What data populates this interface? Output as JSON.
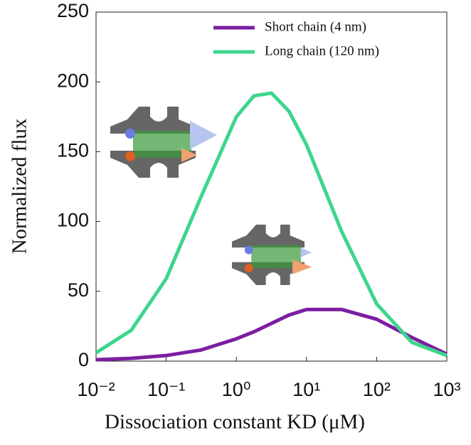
{
  "chart_data": {
    "type": "line",
    "x_label": "Dissociation constant KD (μM)",
    "y_label": "Normalized flux",
    "x": [
      0.01,
      0.0316,
      0.1,
      0.316,
      1,
      1.78,
      3.16,
      5.62,
      10,
      31.6,
      100,
      316,
      1000
    ],
    "series": [
      {
        "name": "Short chain (4 nm)",
        "color": "#7b1fa2",
        "values": [
          1,
          2,
          4,
          8,
          16,
          21,
          27,
          33,
          37,
          37,
          30,
          17,
          5
        ]
      },
      {
        "name": "Long chain (120 nm)",
        "color": "#3dd68c",
        "values": [
          6,
          22,
          59,
          118,
          175,
          190,
          192,
          179,
          155,
          93,
          41,
          13.5,
          4
        ]
      }
    ],
    "xlim": [
      0.01,
      1000
    ],
    "xscale": "log",
    "xticks": [
      {
        "value": 0.01,
        "label": "10⁻²"
      },
      {
        "value": 0.1,
        "label": "10⁻¹"
      },
      {
        "value": 1,
        "label": "10⁰"
      },
      {
        "value": 10,
        "label": "10¹"
      },
      {
        "value": 100,
        "label": "10²"
      },
      {
        "value": 1000,
        "label": "10³"
      }
    ],
    "ylim": [
      0,
      250
    ],
    "yticks": [
      0,
      50,
      100,
      150,
      200,
      250
    ],
    "grid": false,
    "legend": "upper right"
  }
}
